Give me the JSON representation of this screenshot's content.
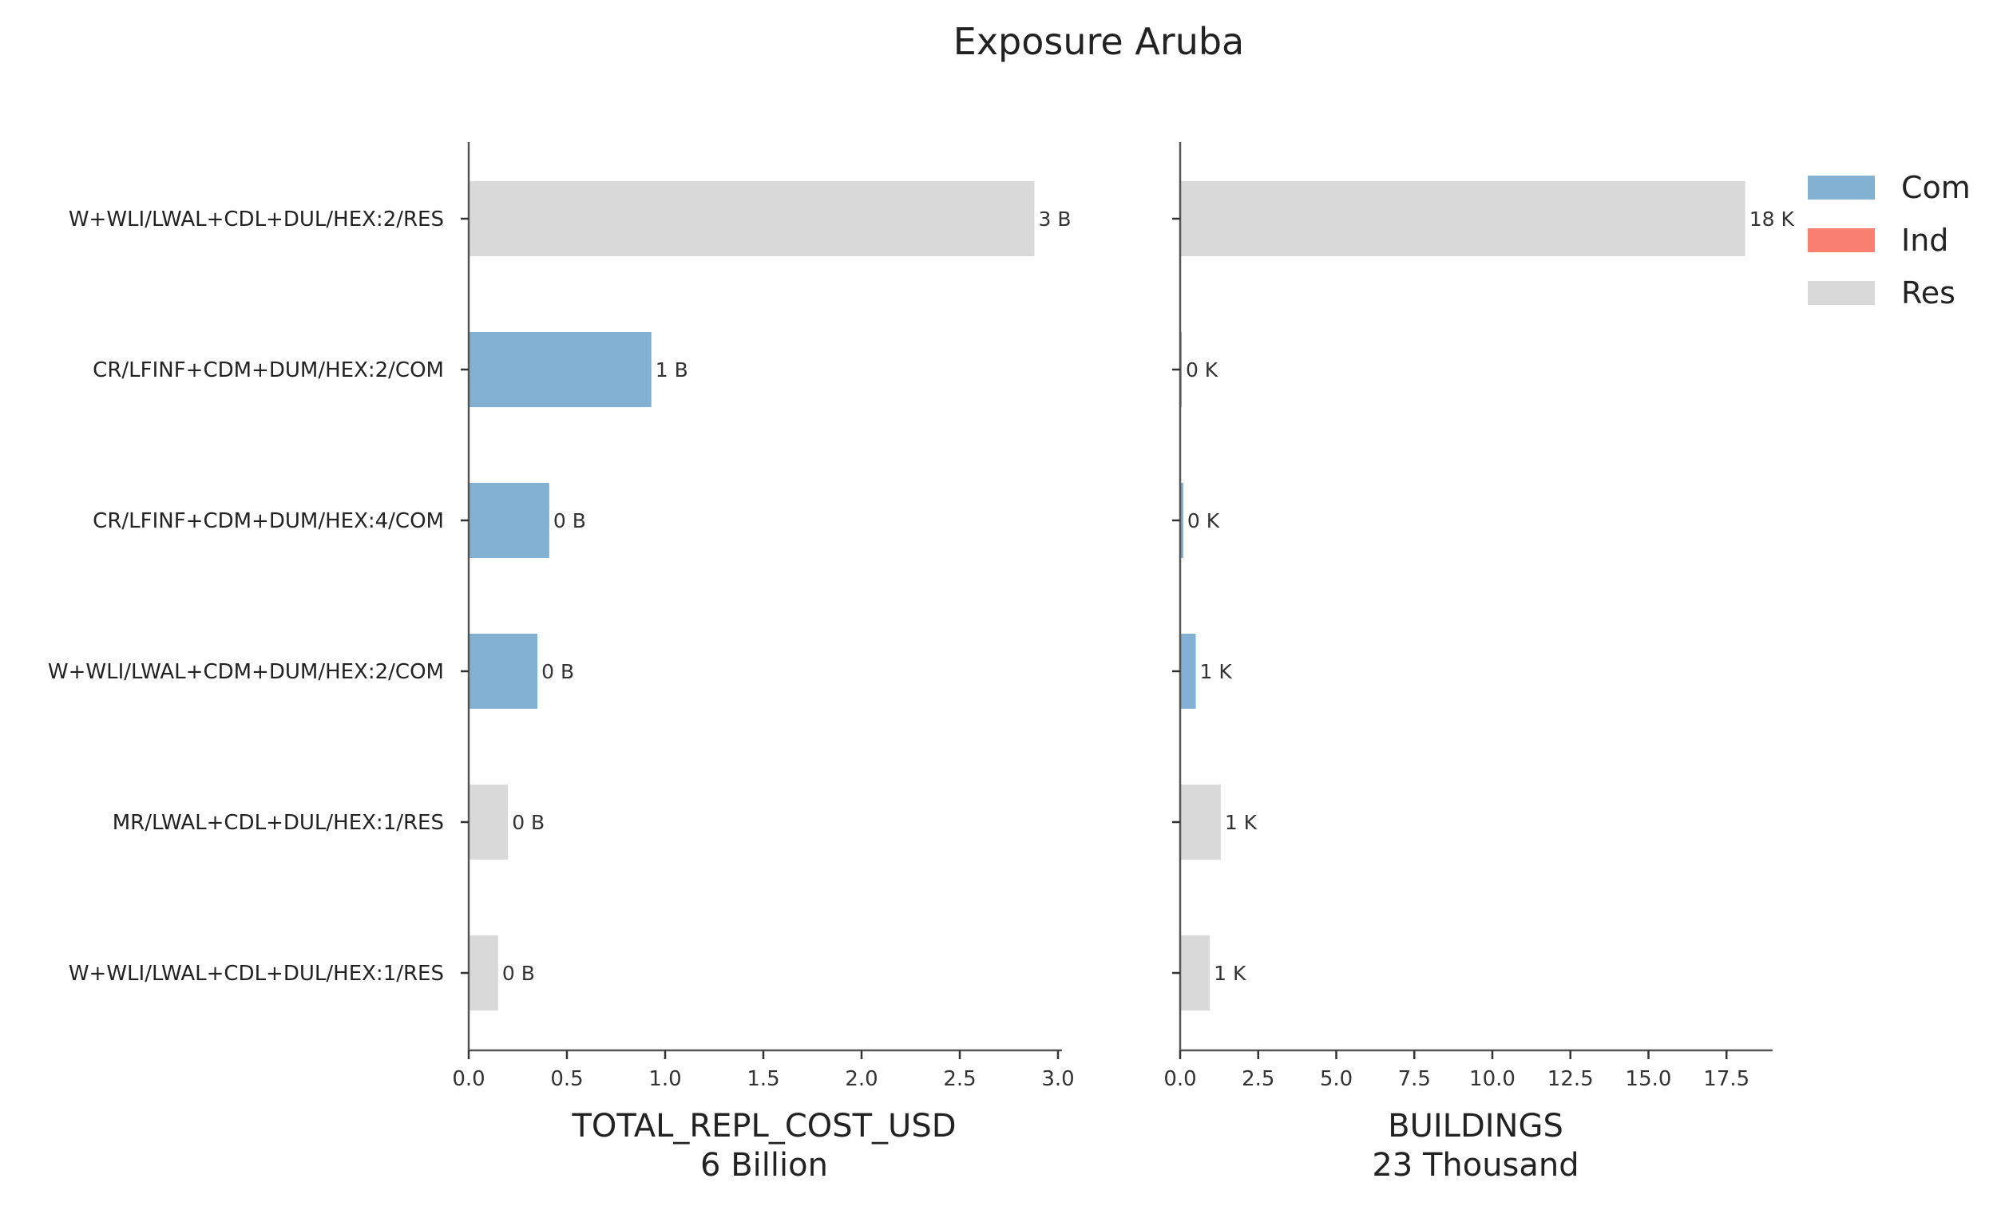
{
  "chart_data": {
    "type": "bar",
    "orientation": "horizontal",
    "title": "Exposure Aruba",
    "categories": [
      "W+WLI/LWAL+CDL+DUL/HEX:2/RES",
      "CR/LFINF+CDM+DUM/HEX:2/COM",
      "CR/LFINF+CDM+DUM/HEX:4/COM",
      "W+WLI/LWAL+CDM+DUM/HEX:2/COM",
      "MR/LWAL+CDL+DUL/HEX:1/RES",
      "W+WLI/LWAL+CDL+DUL/HEX:1/RES"
    ],
    "category_occupancy": [
      "Res",
      "Com",
      "Com",
      "Com",
      "Res",
      "Res"
    ],
    "legend": {
      "placement": "top-right",
      "entries": [
        {
          "name": "Com",
          "color": "#82b1d4"
        },
        {
          "name": "Ind",
          "color": "#fa8072"
        },
        {
          "name": "Res",
          "color": "#d9d9d9"
        }
      ]
    },
    "panels": [
      {
        "xlabel": "TOTAL_REPL_COST_USD",
        "subtitle": "6 Billion",
        "values": [
          2.88,
          0.93,
          0.41,
          0.35,
          0.2,
          0.15
        ],
        "value_labels": [
          "3 B",
          "1 B",
          "0 B",
          "0 B",
          "0 B",
          "0 B"
        ],
        "xlim": [
          0,
          3.0
        ],
        "xticks": [
          "0.0",
          "0.5",
          "1.0",
          "1.5",
          "2.0",
          "2.5",
          "3.0"
        ]
      },
      {
        "xlabel": "BUILDINGS",
        "subtitle": "23 Thousand",
        "values": [
          18.1,
          0.05,
          0.1,
          0.5,
          1.3,
          0.95
        ],
        "value_labels": [
          "18 K",
          "0 K",
          "0 K",
          "1 K",
          "1 K",
          "1 K"
        ],
        "xlim": [
          0,
          17.5
        ],
        "xticks": [
          "0.0",
          "2.5",
          "5.0",
          "7.5",
          "10.0",
          "12.5",
          "15.0",
          "17.5"
        ]
      }
    ],
    "grid": false
  }
}
